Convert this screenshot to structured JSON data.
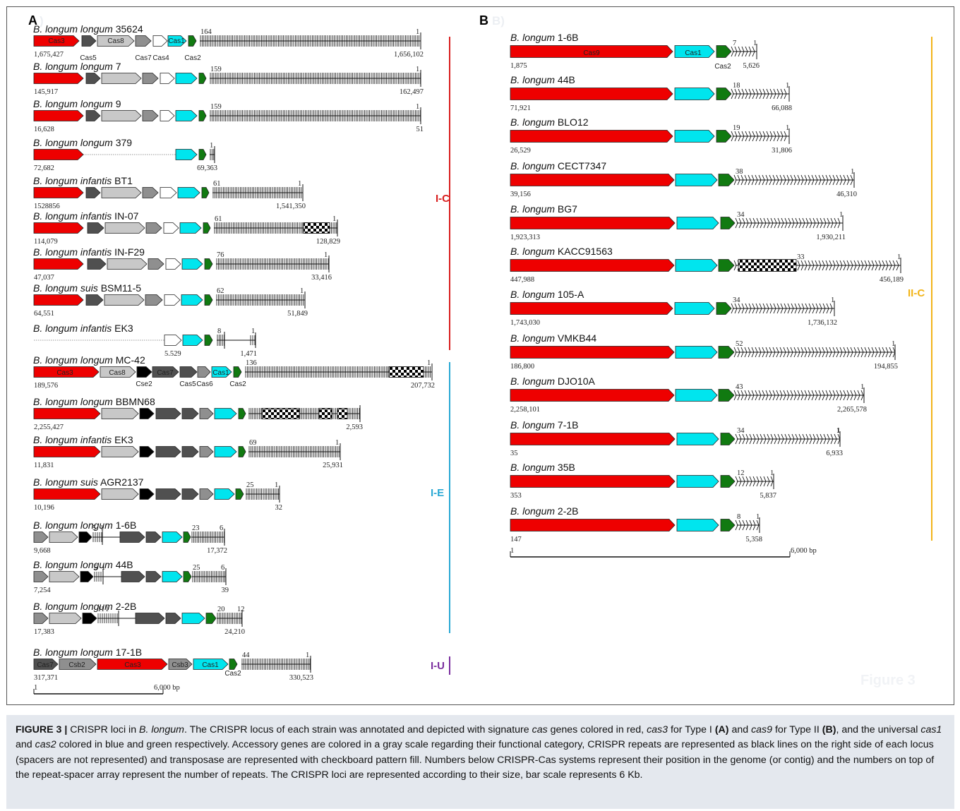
{
  "figure": {
    "panel_a": "A",
    "panel_b": "B",
    "panel_b_ghost": "B)",
    "panel_a_ghost": ")",
    "watermark": "Figure 3",
    "colors": {
      "cas3": "#ee0000",
      "cas9": "#ee0000",
      "cas1": "#00e5ee",
      "cas2": "#117a11",
      "acc_light": "#c8c8c8",
      "acc_mid": "#8f8f8f",
      "acc_dark": "#505050",
      "cse2": "#000000",
      "empty": "#ffffff",
      "type_IC": "#d91e1e",
      "type_IE": "#29a8d4",
      "type_IU": "#7a2e9e",
      "type_IIC": "#f2b418"
    },
    "categories": [
      {
        "label": "I-C",
        "color": "#d91e1e"
      },
      {
        "label": "I-E",
        "color": "#29a8d4"
      },
      {
        "label": "I-U",
        "color": "#7a2e9e"
      },
      {
        "label": "II-C",
        "color": "#f2b418"
      }
    ],
    "panel_a_strains": [
      {
        "name": [
          "B. longum longum",
          " 35624"
        ],
        "start": "1,675,427",
        "end": "1,656,102",
        "top_left": "164",
        "top_right": "1"
      },
      {
        "name": [
          "B. longum longum",
          " 7"
        ],
        "start": "145,917",
        "end": "162,497",
        "top_left": "159",
        "top_right": "1"
      },
      {
        "name": [
          "B. longum longum",
          " 9"
        ],
        "start": "16,628",
        "end": "51",
        "top_left": "159",
        "top_right": "1"
      },
      {
        "name": [
          "B. longum longum",
          " 379"
        ],
        "start": "72,682",
        "end": "69,363",
        "top_left": "",
        "top_right": "1"
      },
      {
        "name": [
          "B. longum infantis",
          " BT1"
        ],
        "start": "1528856",
        "end": "1,541,350",
        "top_left": "61",
        "top_right": "1"
      },
      {
        "name": [
          "B. longum infantis",
          " IN-07"
        ],
        "start": "114,079",
        "end": "128,829",
        "top_left": "61",
        "top_right": "1"
      },
      {
        "name": [
          "B. longum infantis",
          " IN-F29"
        ],
        "start": "47,037",
        "end": "33,416",
        "top_left": "76",
        "top_right": "1"
      },
      {
        "name": [
          "B. longum suis",
          " BSM11-5"
        ],
        "start": "64,551",
        "end": "51,849",
        "top_left": "62",
        "top_right": "1"
      },
      {
        "name": [
          "B. longum infantis",
          " EK3"
        ],
        "start": "5.529",
        "end": "1,471",
        "top_left": "8",
        "top_right": "1"
      },
      {
        "name": [
          "B. longum longum",
          " MC-42"
        ],
        "start": "189,576",
        "end": "207,732",
        "top_left": "136",
        "top_right": "1"
      },
      {
        "name": [
          "B. longum longum",
          " BBMN68"
        ],
        "start": "2,255,427",
        "end": "2,593",
        "top_left": "",
        "top_right": ""
      },
      {
        "name": [
          "B. longum infantis",
          " EK3"
        ],
        "start": "11,831",
        "end": "25,931",
        "top_left": "69",
        "top_right": "1"
      },
      {
        "name": [
          "B. longum suis",
          " AGR2137"
        ],
        "start": "10,196",
        "end": "32",
        "top_left": "25",
        "top_right": "1"
      },
      {
        "name": [
          "B. longum longum",
          " 1-6B"
        ],
        "start": "9,668",
        "end": "17,372",
        "top_left": "23",
        "top_right": "6",
        "mini_left": "5",
        "mini_right": "1"
      },
      {
        "name": [
          "B. longum longum",
          " 44B"
        ],
        "start": "7,254",
        "end": "39",
        "top_left": "25",
        "top_right": "6",
        "mini_left": "5",
        "mini_right": "1"
      },
      {
        "name": [
          "B. longum longum",
          " 2-2B"
        ],
        "start": "17,383",
        "end": "24,210",
        "top_left": "20",
        "top_right": "12",
        "mini_left": "11",
        "mini_right": "1"
      },
      {
        "name": [
          "B. longum longum",
          " 17-1B"
        ],
        "start": "317,371",
        "end": "330,523",
        "top_left": "44",
        "top_right": "1"
      }
    ],
    "panel_a_gene_labels": {
      "r0": [
        "Cas3",
        "Cas8",
        "Cas1",
        "Cas5",
        "Cas7",
        "Cas4",
        "Cas2"
      ],
      "r9": [
        "Cas3",
        "Cas8",
        "Cas7",
        "Cas1",
        "Cse2",
        "Cas5",
        "Cas6",
        "Cas2"
      ],
      "r16": [
        "Cas7",
        "Csb2",
        "Cas3",
        "Csb3",
        "Cas1",
        "Cas2"
      ]
    },
    "panel_a_scale": {
      "left": "1",
      "right": "6,000 bp"
    },
    "panel_b_strains": [
      {
        "name": [
          "B. longum",
          " 1-6B"
        ],
        "start": "1,875",
        "end": "5,626",
        "top_left": "7",
        "top_right": "1"
      },
      {
        "name": [
          "B. longum",
          " 44B"
        ],
        "start": "71,921",
        "end": "66,088",
        "top_left": "18",
        "top_right": "1"
      },
      {
        "name": [
          "B. longum",
          " BLO12"
        ],
        "start": "26,529",
        "end": "31,806",
        "top_left": "19",
        "top_right": "1"
      },
      {
        "name": [
          "B. longum",
          " CECT7347"
        ],
        "start": "39,156",
        "end": "46,310",
        "top_left": "38",
        "top_right": "1"
      },
      {
        "name": [
          "B. longum",
          " BG7"
        ],
        "start": "1,923,313",
        "end": "1,930,211",
        "top_left": "34",
        "top_right": "1"
      },
      {
        "name": [
          "B. longum",
          " KACC91563"
        ],
        "start": "447,988",
        "end": "456,189",
        "top_left": "33",
        "top_right": "1"
      },
      {
        "name": [
          "B. longum",
          " 105-A"
        ],
        "start": "1,743,030",
        "end": "1,736,132",
        "top_left": "34",
        "top_right": "1"
      },
      {
        "name": [
          "B. longum",
          " VMKB44"
        ],
        "start": "186,800",
        "end": "194,855",
        "top_left": "52",
        "top_right": "1"
      },
      {
        "name": [
          "B. longum",
          " DJO10A"
        ],
        "start": "2,258,101",
        "end": "2,265,578",
        "top_left": "43",
        "top_right": "1"
      },
      {
        "name": [
          "B. longum",
          " 7-1B"
        ],
        "start": "35",
        "end": "6,933",
        "top_left": "34",
        "top_right": "1"
      },
      {
        "name": [
          "B. longum",
          " 35B"
        ],
        "start": "353",
        "end": "5,837",
        "top_left": "12",
        "top_right": "1"
      },
      {
        "name": [
          "B. longum",
          " 2-2B"
        ],
        "start": "147",
        "end": "5,358",
        "top_left": "8",
        "top_right": "1"
      }
    ],
    "panel_b_gene_labels": [
      "Cas9",
      "Cas1",
      "Cas2"
    ],
    "panel_b_scale": {
      "left": "1",
      "right": "6,000 bp"
    }
  },
  "caption": {
    "label": "FIGURE 3 |",
    "t1": " CRISPR loci in ",
    "i1": "B. longum",
    "t2": ". The CRISPR locus of each strain was annotated and depicted with signature ",
    "i2": "cas",
    "t3": " genes colored in red, ",
    "i3": "cas3",
    "t4": " for Type I ",
    "b1": "(A)",
    "t5": " and ",
    "i4": "cas9",
    "t6": " for Type II ",
    "b2": "(B)",
    "t7": ", and the universal ",
    "i5": "cas1",
    "t8": " and ",
    "i6": "cas2",
    "t9": " colored in blue and green respectively. Accessory genes are colored in a gray scale regarding their functional category, CRISPR repeats are represented as black lines on the right side of each locus (spacers are not represented) and transposase are represented with checkboard pattern fill. Numbers below CRISPR-Cas systems represent their position in the genome (or contig) and the numbers on top of the repeat-spacer array represent the number of repeats. The CRISPR loci are represented according to their size, bar scale represents 6 Kb."
  }
}
